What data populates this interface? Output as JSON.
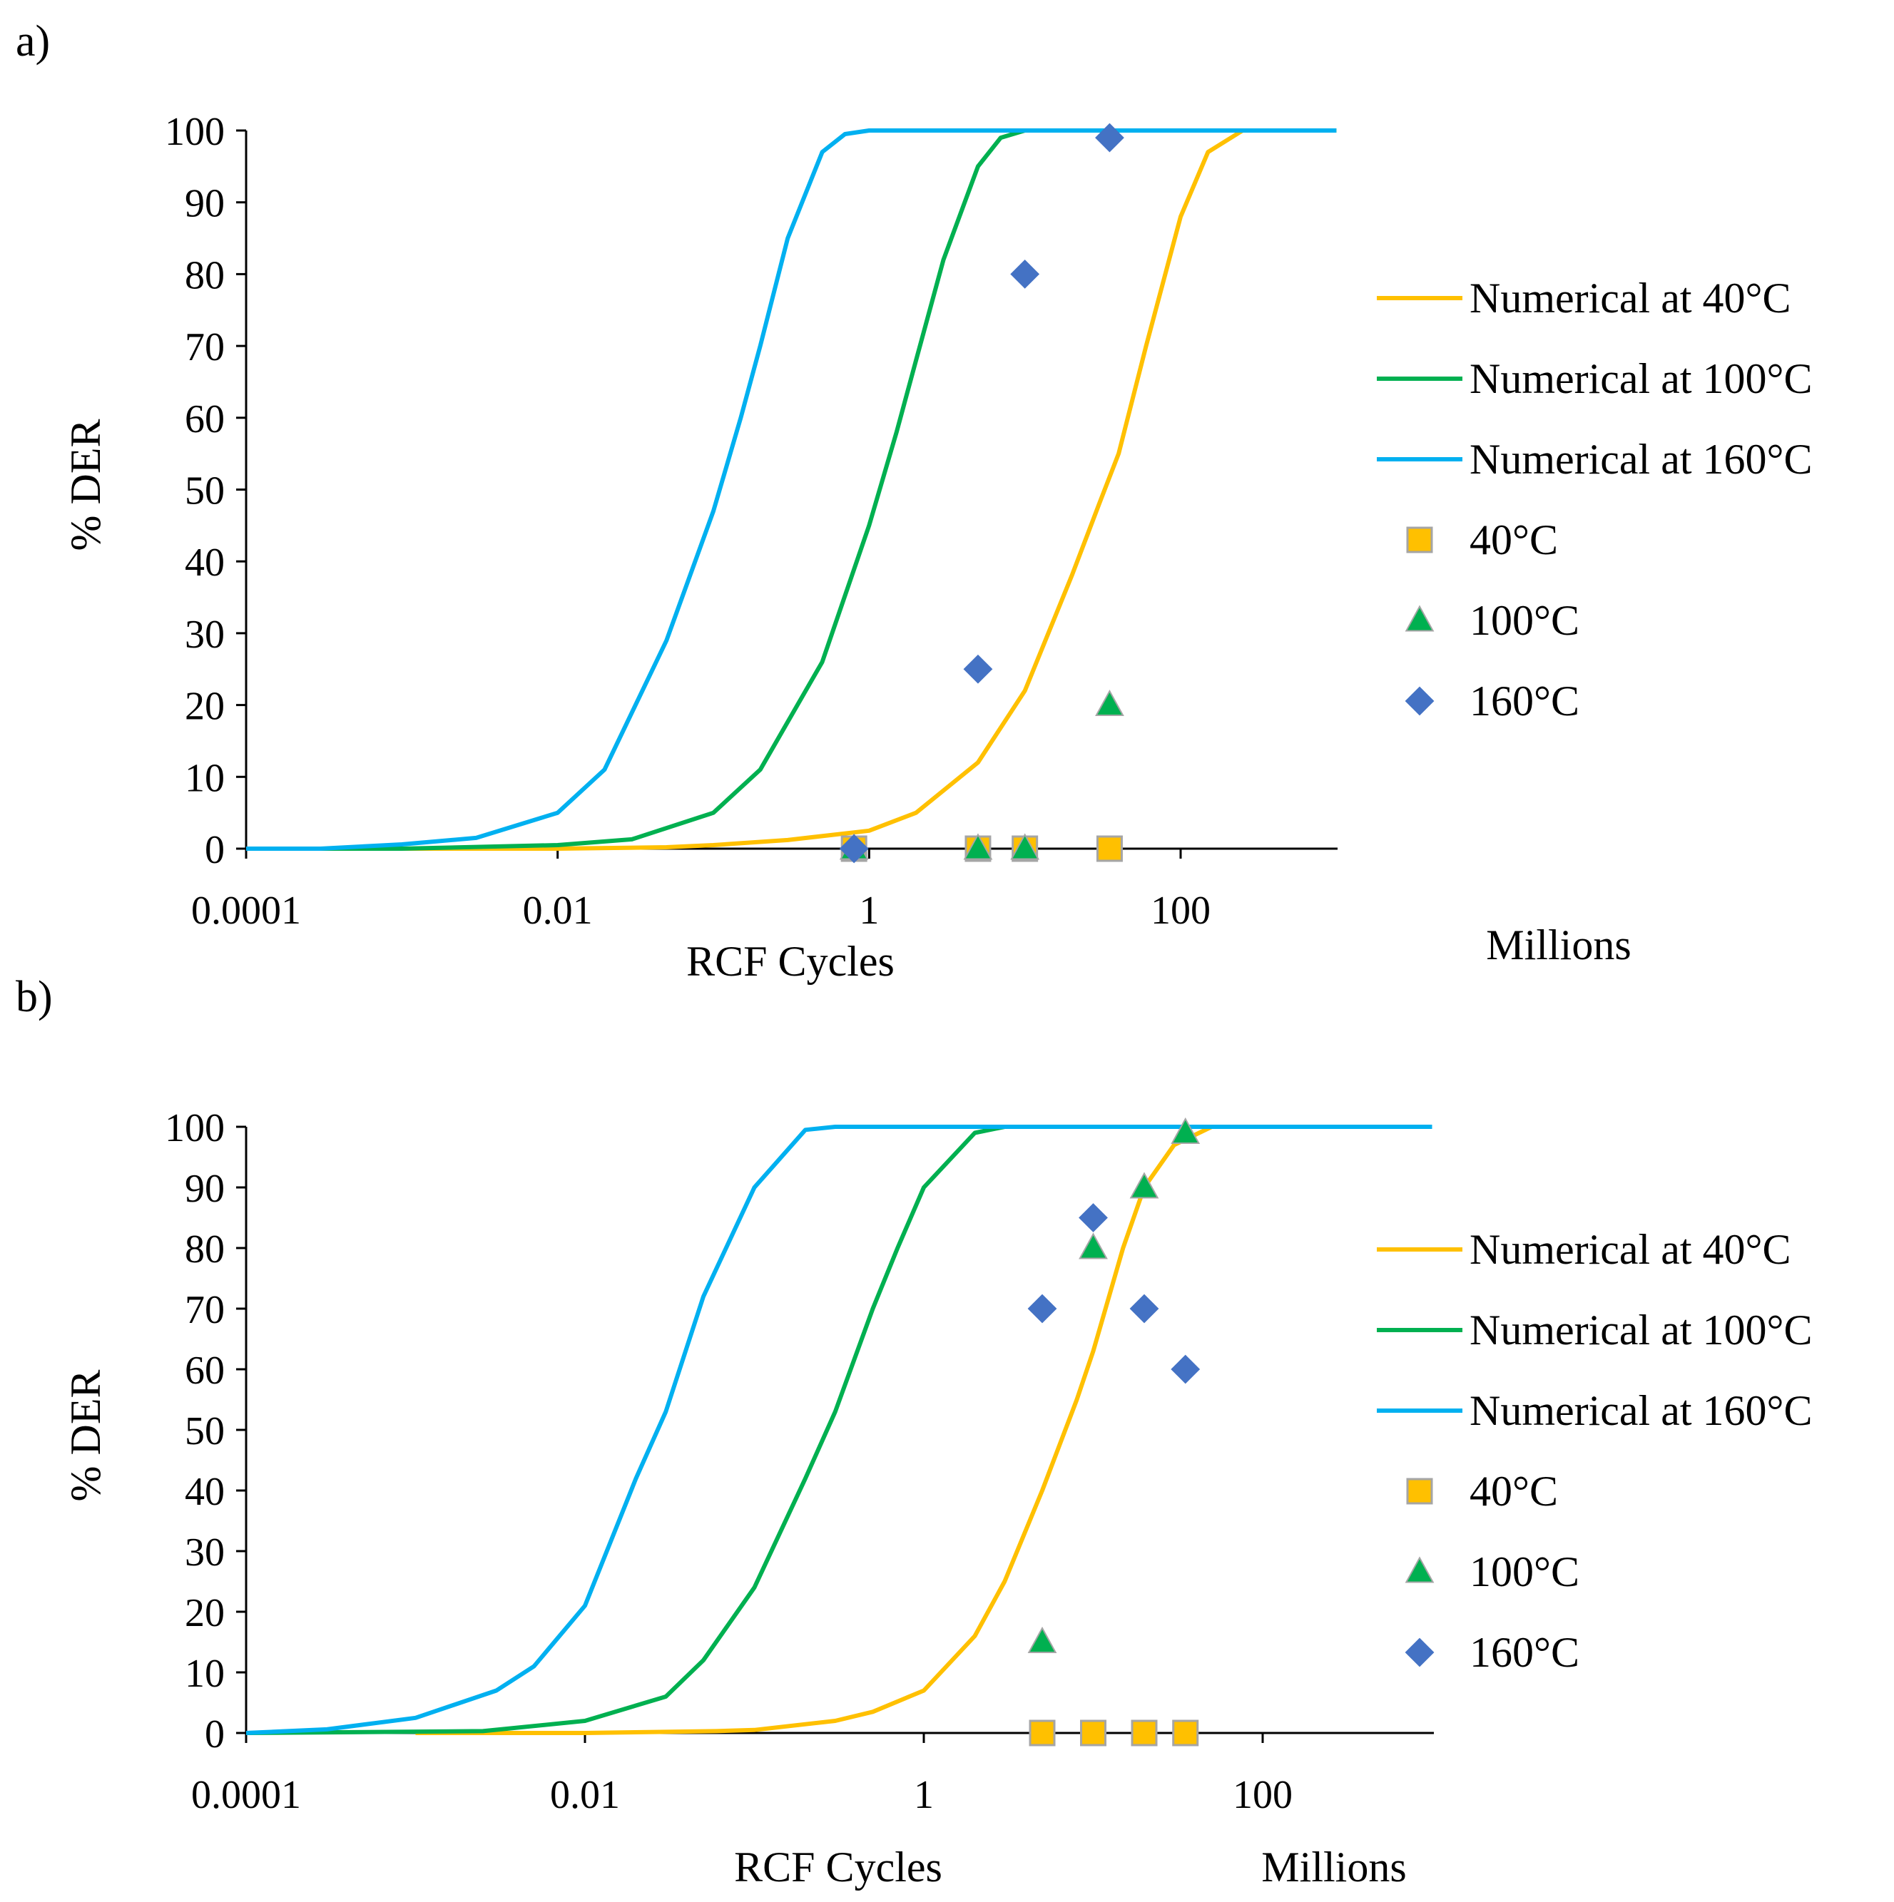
{
  "colors": {
    "c40": "#FFC000",
    "c100": "#00B050",
    "c160": "#00B0F0",
    "diamond": "#4472C4",
    "axis": "#000000",
    "markerEdge": "#A5A5A5"
  },
  "chart_data": [
    {
      "type": "scatter",
      "panel_label": "a)",
      "xlabel": "RCF Cycles",
      "units_label": "Millions",
      "ylabel": "% DER",
      "x_scale": "log",
      "xlim": [
        0.0001,
        1000
      ],
      "ylim": [
        0,
        100
      ],
      "x_ticks": [
        0.0001,
        0.01,
        1,
        100
      ],
      "x_tick_labels": [
        "0.0001",
        "0.01",
        "1",
        "100"
      ],
      "y_ticks": [
        0,
        10,
        20,
        30,
        40,
        50,
        60,
        70,
        80,
        90,
        100
      ],
      "y_tick_labels": [
        "0",
        "10",
        "20",
        "30",
        "40",
        "50",
        "60",
        "70",
        "80",
        "90",
        "100"
      ],
      "legend_position": "right",
      "legend": [
        "Numerical at 40°C",
        "Numerical at 100°C",
        "Numerical at 160°C",
        "40°C",
        "100°C",
        "160°C"
      ],
      "series": [
        {
          "name": "Numerical at 40°C",
          "kind": "line",
          "color_key": "c40",
          "x": [
            0.001,
            0.01,
            0.05,
            0.1,
            0.3,
            1,
            2,
            5,
            10,
            20,
            30,
            40,
            60,
            100,
            150,
            250,
            1000
          ],
          "y": [
            0,
            0,
            0.2,
            0.5,
            1.2,
            2.5,
            5,
            12,
            22,
            38,
            48,
            55,
            70,
            88,
            97,
            100,
            100
          ]
        },
        {
          "name": "Numerical at 100°C",
          "kind": "line",
          "color_key": "c100",
          "x": [
            0.0001,
            0.001,
            0.01,
            0.03,
            0.1,
            0.2,
            0.5,
            1,
            1.5,
            2,
            3,
            5,
            7,
            10,
            1000
          ],
          "y": [
            0,
            0,
            0.5,
            1.3,
            5,
            11,
            26,
            45,
            58,
            68,
            82,
            95,
            99,
            100,
            100
          ]
        },
        {
          "name": "Numerical at 160°C",
          "kind": "line",
          "color_key": "c160",
          "x": [
            0.0001,
            0.0003,
            0.001,
            0.003,
            0.01,
            0.02,
            0.05,
            0.1,
            0.15,
            0.2,
            0.3,
            0.5,
            0.7,
            1,
            1000
          ],
          "y": [
            0,
            0,
            0.6,
            1.5,
            5,
            11,
            29,
            47,
            60,
            70,
            85,
            97,
            99.5,
            100,
            100
          ]
        },
        {
          "name": "40°C",
          "kind": "marker",
          "marker": "square",
          "color_key": "c40",
          "x": [
            0.8,
            5,
            10,
            35
          ],
          "y": [
            0,
            0,
            0,
            0
          ]
        },
        {
          "name": "100°C",
          "kind": "marker",
          "marker": "triangle",
          "color_key": "c100",
          "x": [
            0.8,
            5,
            10,
            35
          ],
          "y": [
            0,
            0,
            0,
            20
          ]
        },
        {
          "name": "160°C",
          "kind": "marker",
          "marker": "diamond",
          "color_key": "diamond",
          "x": [
            0.8,
            5,
            10,
            35
          ],
          "y": [
            0,
            25,
            80,
            99
          ]
        }
      ]
    },
    {
      "type": "scatter",
      "panel_label": "b)",
      "xlabel": "RCF Cycles",
      "units_label": "Millions",
      "ylabel": "% DER",
      "x_scale": "log",
      "xlim": [
        0.0001,
        1000
      ],
      "ylim": [
        0,
        100
      ],
      "x_ticks": [
        0.0001,
        0.01,
        1,
        100
      ],
      "x_tick_labels": [
        "0.0001",
        "0.01",
        "1",
        "100"
      ],
      "y_ticks": [
        0,
        10,
        20,
        30,
        40,
        50,
        60,
        70,
        80,
        90,
        100
      ],
      "y_tick_labels": [
        "0",
        "10",
        "20",
        "30",
        "40",
        "50",
        "60",
        "70",
        "80",
        "90",
        "100"
      ],
      "legend_position": "right",
      "legend": [
        "Numerical at 40°C",
        "Numerical at 100°C",
        "Numerical at 160°C",
        "40°C",
        "100°C",
        "160°C"
      ],
      "series": [
        {
          "name": "Numerical at 40°C",
          "kind": "line",
          "color_key": "c40",
          "x": [
            0.001,
            0.01,
            0.06,
            0.1,
            0.3,
            0.5,
            1,
            2,
            3,
            5,
            8,
            10,
            15,
            20,
            30,
            50,
            70,
            1000
          ],
          "y": [
            0,
            0,
            0.3,
            0.5,
            2,
            3.5,
            7,
            16,
            25,
            40,
            55,
            63,
            80,
            90,
            97,
            100,
            100,
            100
          ]
        },
        {
          "name": "Numerical at 100°C",
          "kind": "line",
          "color_key": "c100",
          "x": [
            0.0001,
            0.0025,
            0.01,
            0.03,
            0.05,
            0.1,
            0.2,
            0.3,
            0.5,
            0.7,
            1,
            2,
            3,
            4,
            1000
          ],
          "y": [
            0,
            0.3,
            2,
            6,
            12,
            24,
            42,
            53,
            70,
            80,
            90,
            99,
            100,
            100,
            100
          ]
        },
        {
          "name": "Numerical at 160°C",
          "kind": "line",
          "color_key": "c160",
          "x": [
            0.0001,
            0.0003,
            0.001,
            0.003,
            0.005,
            0.01,
            0.02,
            0.03,
            0.05,
            0.1,
            0.2,
            0.3,
            1000
          ],
          "y": [
            0,
            0.6,
            2.5,
            7,
            11,
            21,
            42,
            53,
            72,
            90,
            99.5,
            100,
            100
          ]
        },
        {
          "name": "40°C",
          "kind": "marker",
          "marker": "square",
          "color_key": "c40",
          "x": [
            5,
            10,
            20,
            35
          ],
          "y": [
            0,
            0,
            0,
            0
          ]
        },
        {
          "name": "100°C",
          "kind": "marker",
          "marker": "triangle",
          "color_key": "c100",
          "x": [
            5,
            10,
            20,
            35
          ],
          "y": [
            15,
            80,
            90,
            99
          ]
        },
        {
          "name": "160°C",
          "kind": "marker",
          "marker": "diamond",
          "color_key": "diamond",
          "x": [
            5,
            10,
            20,
            35
          ],
          "y": [
            70,
            85,
            70,
            60
          ]
        }
      ]
    }
  ]
}
